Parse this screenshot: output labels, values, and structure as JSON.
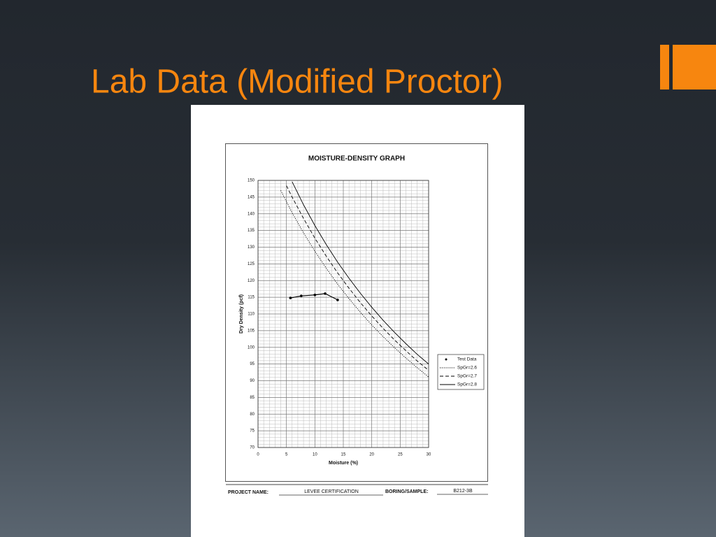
{
  "slide": {
    "title": "Lab Data (Modified Proctor)"
  },
  "chart_data": {
    "type": "line",
    "title": "MOISTURE-DENSITY GRAPH",
    "xlabel": "Moisture (%)",
    "ylabel": "Dry Density (pcf)",
    "xlim": [
      0,
      30
    ],
    "xticks": [
      0,
      5,
      10,
      15,
      20,
      25,
      30
    ],
    "ylim": [
      70,
      150
    ],
    "yticks": [
      70,
      75,
      80,
      85,
      90,
      95,
      100,
      105,
      110,
      115,
      120,
      125,
      130,
      135,
      140,
      145,
      150
    ],
    "grid": true,
    "legend": "right",
    "series": [
      {
        "name": "Test Data",
        "color": "#000000",
        "dash": "solid",
        "markers": true,
        "x": [
          5.7,
          7.6,
          10.0,
          11.8,
          14.0
        ],
        "values": [
          114.8,
          115.4,
          115.7,
          116.1,
          114.2
        ]
      },
      {
        "name": "SpGr=2.6",
        "color": "#000000",
        "dash": "dotted",
        "markers": false,
        "x": [
          4,
          6,
          8,
          10,
          12,
          14,
          16,
          18,
          20,
          22,
          24,
          26,
          28,
          30
        ],
        "values": [
          147.0,
          140.3,
          134.3,
          128.8,
          123.7,
          118.9,
          114.6,
          110.5,
          106.7,
          103.2,
          99.9,
          96.8,
          93.9,
          91.1
        ]
      },
      {
        "name": "SpGr=2.7",
        "color": "#000000",
        "dash": "dashed",
        "markers": false,
        "x": [
          5,
          6,
          8,
          10,
          12,
          14,
          16,
          18,
          20,
          22,
          24,
          26,
          28,
          30
        ],
        "values": [
          148.4,
          145.0,
          138.6,
          132.7,
          127.3,
          122.3,
          117.7,
          113.4,
          109.4,
          105.7,
          102.2,
          99.0,
          95.9,
          93.1
        ]
      },
      {
        "name": "SpGr=2.8",
        "color": "#000000",
        "dash": "solid",
        "markers": false,
        "x": [
          6,
          8,
          10,
          12,
          14,
          16,
          18,
          20,
          22,
          24,
          26,
          28,
          30
        ],
        "values": [
          149.6,
          142.7,
          136.5,
          130.8,
          125.5,
          120.7,
          116.2,
          112.0,
          108.1,
          104.5,
          101.1,
          97.9,
          95.0
        ]
      }
    ]
  },
  "form": {
    "project_label": "PROJECT NAME:",
    "project_value": "LEVEE CERTIFICATION",
    "boring_label": "BORING/SAMPLE:",
    "boring_value": "B212-3B"
  }
}
